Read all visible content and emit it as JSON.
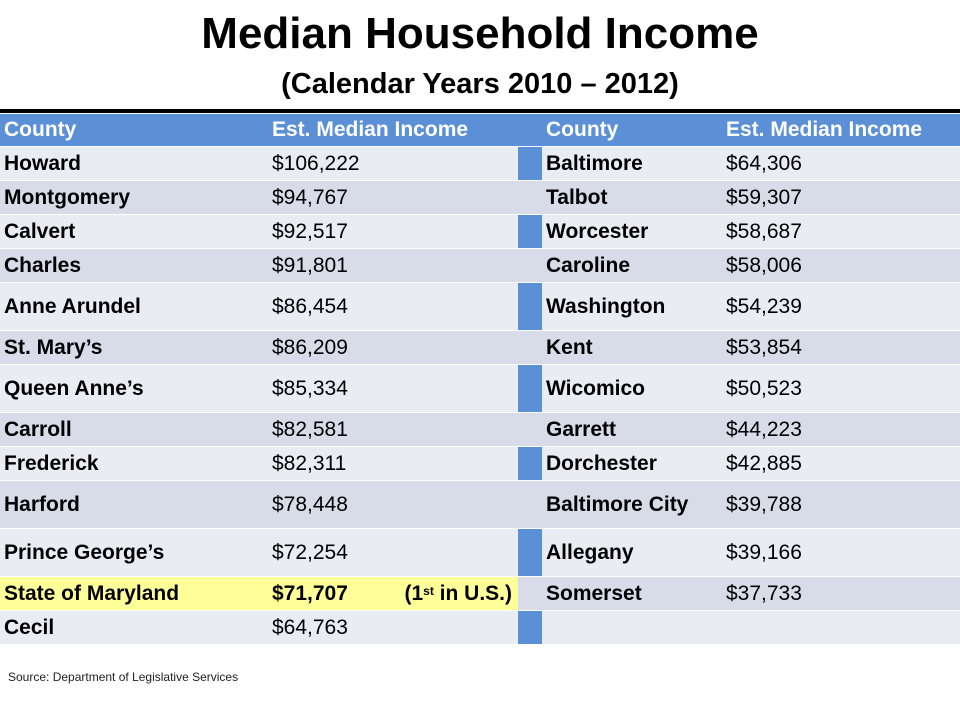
{
  "title": "Median Household Income",
  "subtitle": "(Calendar Years 2010 – 2012)",
  "headers": {
    "county": "County",
    "income": "Est. Median Income"
  },
  "rows": [
    {
      "l_county": "Howard",
      "l_income": "$106,222",
      "r_county": "Baltimore",
      "r_income": "$64,306"
    },
    {
      "l_county": "Montgomery",
      "l_income": "$94,767",
      "r_county": "Talbot",
      "r_income": "$59,307"
    },
    {
      "l_county": "Calvert",
      "l_income": "$92,517",
      "r_county": "Worcester",
      "r_income": "$58,687"
    },
    {
      "l_county": "Charles",
      "l_income": "$91,801",
      "r_county": "Caroline",
      "r_income": "$58,006"
    },
    {
      "l_county": "Anne Arundel",
      "l_income": "$86,454",
      "r_county": "Washington",
      "r_income": "$54,239"
    },
    {
      "l_county": "St. Mary’s",
      "l_income": "$86,209",
      "r_county": "Kent",
      "r_income": "$53,854"
    },
    {
      "l_county": "Queen Anne’s",
      "l_income": "$85,334",
      "r_county": "Wicomico",
      "r_income": "$50,523"
    },
    {
      "l_county": "Carroll",
      "l_income": "$82,581",
      "r_county": "Garrett",
      "r_income": "$44,223"
    },
    {
      "l_county": "Frederick",
      "l_income": "$82,311",
      "r_county": "Dorchester",
      "r_income": "$42,885"
    },
    {
      "l_county": "Harford",
      "l_income": "$78,448",
      "r_county": "Baltimore City",
      "r_income": "$39,788"
    },
    {
      "l_county": "Prince George’s",
      "l_income": "$72,254",
      "r_county": "Allegany",
      "r_income": "$39,166"
    },
    {
      "l_county": "State of Maryland",
      "l_income": "$71,707",
      "r_county": "Somerset",
      "r_income": "$37,733"
    },
    {
      "l_county": "Cecil",
      "l_income": "$64,763",
      "r_county": "",
      "r_income": ""
    }
  ],
  "rank_note": {
    "open": "(1",
    "sup": "st",
    "close": " in U.S.)"
  },
  "colors": {
    "header": "#5b8fd6",
    "highlight": "#ffff99",
    "row_light": "#e9ecf3",
    "row_shade": "#d7dce8"
  },
  "source": "Source:  Department of Legislative Services"
}
